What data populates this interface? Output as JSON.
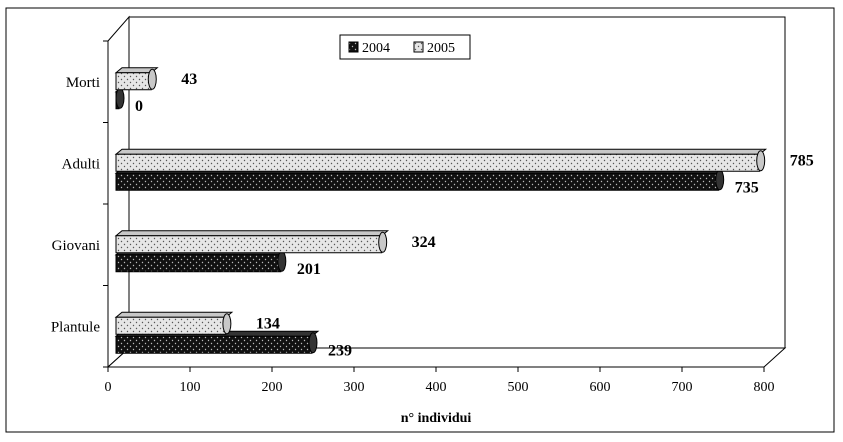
{
  "chart_data": {
    "type": "bar",
    "orientation": "horizontal",
    "categories": [
      "Plantule",
      "Giovani",
      "Adulti",
      "Morti"
    ],
    "series": [
      {
        "name": "2004",
        "values": [
          239,
          201,
          735,
          0
        ],
        "color": "#1f1f1f",
        "pattern": "dark dotted"
      },
      {
        "name": "2005",
        "values": [
          134,
          324,
          785,
          43
        ],
        "color": "#d9d9d9",
        "pattern": "light dotted"
      }
    ],
    "title": "",
    "xlabel": "n° individui",
    "ylabel": "",
    "xlim": [
      0,
      800
    ],
    "xticks": [
      0,
      100,
      200,
      300,
      400,
      500,
      600,
      700,
      800
    ],
    "legend_position": "top-center",
    "grid": false,
    "style": "3d"
  }
}
